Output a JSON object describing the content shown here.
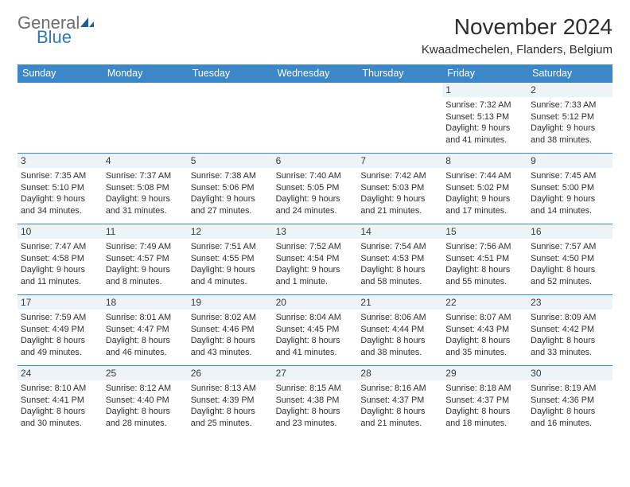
{
  "brand": {
    "word1": "General",
    "word2": "Blue",
    "color_general": "#6d6d6d",
    "color_blue": "#3078b8",
    "icon_fill": "#1f5e99"
  },
  "header": {
    "title": "November 2024",
    "location": "Kwaadmechelen, Flanders, Belgium"
  },
  "colors": {
    "header_bar": "#3b87c8",
    "week_divider": "#3b87c8",
    "daynum_bg": "#eef3f8",
    "text": "#2e2e2e",
    "info_text": "#2f2f2f",
    "page_bg": "#ffffff"
  },
  "typography": {
    "title_fontsize": 28,
    "location_fontsize": 15,
    "dayname_fontsize": 12.5,
    "daynum_fontsize": 12,
    "info_fontsize": 10.8
  },
  "daynames": [
    "Sunday",
    "Monday",
    "Tuesday",
    "Wednesday",
    "Thursday",
    "Friday",
    "Saturday"
  ],
  "weeks": [
    [
      {
        "n": "",
        "sr": "",
        "ss": "",
        "dl": ""
      },
      {
        "n": "",
        "sr": "",
        "ss": "",
        "dl": ""
      },
      {
        "n": "",
        "sr": "",
        "ss": "",
        "dl": ""
      },
      {
        "n": "",
        "sr": "",
        "ss": "",
        "dl": ""
      },
      {
        "n": "",
        "sr": "",
        "ss": "",
        "dl": ""
      },
      {
        "n": "1",
        "sr": "Sunrise: 7:32 AM",
        "ss": "Sunset: 5:13 PM",
        "dl": "Daylight: 9 hours and 41 minutes."
      },
      {
        "n": "2",
        "sr": "Sunrise: 7:33 AM",
        "ss": "Sunset: 5:12 PM",
        "dl": "Daylight: 9 hours and 38 minutes."
      }
    ],
    [
      {
        "n": "3",
        "sr": "Sunrise: 7:35 AM",
        "ss": "Sunset: 5:10 PM",
        "dl": "Daylight: 9 hours and 34 minutes."
      },
      {
        "n": "4",
        "sr": "Sunrise: 7:37 AM",
        "ss": "Sunset: 5:08 PM",
        "dl": "Daylight: 9 hours and 31 minutes."
      },
      {
        "n": "5",
        "sr": "Sunrise: 7:38 AM",
        "ss": "Sunset: 5:06 PM",
        "dl": "Daylight: 9 hours and 27 minutes."
      },
      {
        "n": "6",
        "sr": "Sunrise: 7:40 AM",
        "ss": "Sunset: 5:05 PM",
        "dl": "Daylight: 9 hours and 24 minutes."
      },
      {
        "n": "7",
        "sr": "Sunrise: 7:42 AM",
        "ss": "Sunset: 5:03 PM",
        "dl": "Daylight: 9 hours and 21 minutes."
      },
      {
        "n": "8",
        "sr": "Sunrise: 7:44 AM",
        "ss": "Sunset: 5:02 PM",
        "dl": "Daylight: 9 hours and 17 minutes."
      },
      {
        "n": "9",
        "sr": "Sunrise: 7:45 AM",
        "ss": "Sunset: 5:00 PM",
        "dl": "Daylight: 9 hours and 14 minutes."
      }
    ],
    [
      {
        "n": "10",
        "sr": "Sunrise: 7:47 AM",
        "ss": "Sunset: 4:58 PM",
        "dl": "Daylight: 9 hours and 11 minutes."
      },
      {
        "n": "11",
        "sr": "Sunrise: 7:49 AM",
        "ss": "Sunset: 4:57 PM",
        "dl": "Daylight: 9 hours and 8 minutes."
      },
      {
        "n": "12",
        "sr": "Sunrise: 7:51 AM",
        "ss": "Sunset: 4:55 PM",
        "dl": "Daylight: 9 hours and 4 minutes."
      },
      {
        "n": "13",
        "sr": "Sunrise: 7:52 AM",
        "ss": "Sunset: 4:54 PM",
        "dl": "Daylight: 9 hours and 1 minute."
      },
      {
        "n": "14",
        "sr": "Sunrise: 7:54 AM",
        "ss": "Sunset: 4:53 PM",
        "dl": "Daylight: 8 hours and 58 minutes."
      },
      {
        "n": "15",
        "sr": "Sunrise: 7:56 AM",
        "ss": "Sunset: 4:51 PM",
        "dl": "Daylight: 8 hours and 55 minutes."
      },
      {
        "n": "16",
        "sr": "Sunrise: 7:57 AM",
        "ss": "Sunset: 4:50 PM",
        "dl": "Daylight: 8 hours and 52 minutes."
      }
    ],
    [
      {
        "n": "17",
        "sr": "Sunrise: 7:59 AM",
        "ss": "Sunset: 4:49 PM",
        "dl": "Daylight: 8 hours and 49 minutes."
      },
      {
        "n": "18",
        "sr": "Sunrise: 8:01 AM",
        "ss": "Sunset: 4:47 PM",
        "dl": "Daylight: 8 hours and 46 minutes."
      },
      {
        "n": "19",
        "sr": "Sunrise: 8:02 AM",
        "ss": "Sunset: 4:46 PM",
        "dl": "Daylight: 8 hours and 43 minutes."
      },
      {
        "n": "20",
        "sr": "Sunrise: 8:04 AM",
        "ss": "Sunset: 4:45 PM",
        "dl": "Daylight: 8 hours and 41 minutes."
      },
      {
        "n": "21",
        "sr": "Sunrise: 8:06 AM",
        "ss": "Sunset: 4:44 PM",
        "dl": "Daylight: 8 hours and 38 minutes."
      },
      {
        "n": "22",
        "sr": "Sunrise: 8:07 AM",
        "ss": "Sunset: 4:43 PM",
        "dl": "Daylight: 8 hours and 35 minutes."
      },
      {
        "n": "23",
        "sr": "Sunrise: 8:09 AM",
        "ss": "Sunset: 4:42 PM",
        "dl": "Daylight: 8 hours and 33 minutes."
      }
    ],
    [
      {
        "n": "24",
        "sr": "Sunrise: 8:10 AM",
        "ss": "Sunset: 4:41 PM",
        "dl": "Daylight: 8 hours and 30 minutes."
      },
      {
        "n": "25",
        "sr": "Sunrise: 8:12 AM",
        "ss": "Sunset: 4:40 PM",
        "dl": "Daylight: 8 hours and 28 minutes."
      },
      {
        "n": "26",
        "sr": "Sunrise: 8:13 AM",
        "ss": "Sunset: 4:39 PM",
        "dl": "Daylight: 8 hours and 25 minutes."
      },
      {
        "n": "27",
        "sr": "Sunrise: 8:15 AM",
        "ss": "Sunset: 4:38 PM",
        "dl": "Daylight: 8 hours and 23 minutes."
      },
      {
        "n": "28",
        "sr": "Sunrise: 8:16 AM",
        "ss": "Sunset: 4:37 PM",
        "dl": "Daylight: 8 hours and 21 minutes."
      },
      {
        "n": "29",
        "sr": "Sunrise: 8:18 AM",
        "ss": "Sunset: 4:37 PM",
        "dl": "Daylight: 8 hours and 18 minutes."
      },
      {
        "n": "30",
        "sr": "Sunrise: 8:19 AM",
        "ss": "Sunset: 4:36 PM",
        "dl": "Daylight: 8 hours and 16 minutes."
      }
    ]
  ]
}
